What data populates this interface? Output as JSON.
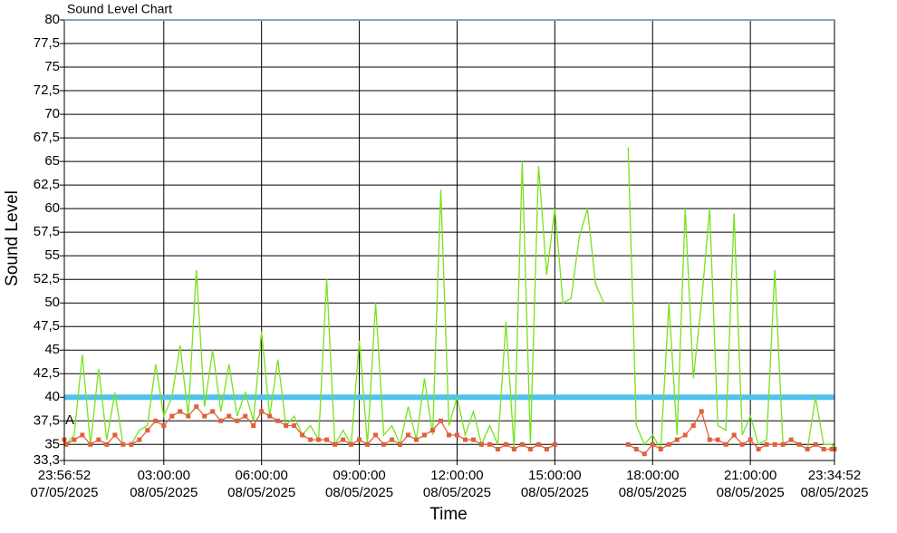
{
  "chart_data": {
    "type": "line",
    "title": "Sound Level Chart",
    "x_label": "Time",
    "y_label": "Sound Level",
    "annotation": "A",
    "threshold": 40,
    "threshold_color": "#4fc1ee",
    "grid": true,
    "xlim": [
      "2025-05-07T23:56:52",
      "2025-05-08T23:34:52"
    ],
    "xticks": [
      {
        "value": "2025-05-07T23:56:52",
        "label": "23:56:52\n07/05/2025"
      },
      {
        "value": "2025-05-08T03:00:00",
        "label": "03:00:00\n08/05/2025"
      },
      {
        "value": "2025-05-08T06:00:00",
        "label": "06:00:00\n08/05/2025"
      },
      {
        "value": "2025-05-08T09:00:00",
        "label": "09:00:00\n08/05/2025"
      },
      {
        "value": "2025-05-08T12:00:00",
        "label": "12:00:00\n08/05/2025"
      },
      {
        "value": "2025-05-08T15:00:00",
        "label": "15:00:00\n08/05/2025"
      },
      {
        "value": "2025-05-08T18:00:00",
        "label": "18:00:00\n08/05/2025"
      },
      {
        "value": "2025-05-08T21:00:00",
        "label": "21:00:00\n08/05/2025"
      },
      {
        "value": "2025-05-08T23:34:52",
        "label": "23:34:52\n08/05/2025"
      }
    ],
    "ylim": [
      33.3,
      80
    ],
    "yticks": [
      {
        "value": 33.3,
        "label": "33,3"
      },
      35,
      {
        "value": 37.5,
        "label": "37,5"
      },
      40,
      {
        "value": 42.5,
        "label": "42,5"
      },
      45,
      {
        "value": 47.5,
        "label": "47,5"
      },
      50,
      {
        "value": 52.5,
        "label": "52,5"
      },
      55,
      {
        "value": 57.5,
        "label": "57,5"
      },
      60,
      {
        "value": 62.5,
        "label": "62,5"
      },
      65,
      {
        "value": 67.5,
        "label": "67,5"
      },
      70,
      {
        "value": 72.5,
        "label": "72,5"
      },
      75,
      {
        "value": 77.5,
        "label": "77,5"
      },
      80
    ],
    "x": [
      "2025-05-07T23:56:52",
      "2025-05-08T00:00:00",
      "2025-05-08T00:15:00",
      "2025-05-08T00:30:00",
      "2025-05-08T00:45:00",
      "2025-05-08T01:00:00",
      "2025-05-08T01:15:00",
      "2025-05-08T01:30:00",
      "2025-05-08T01:45:00",
      "2025-05-08T02:00:00",
      "2025-05-08T02:15:00",
      "2025-05-08T02:30:00",
      "2025-05-08T02:45:00",
      "2025-05-08T03:00:00",
      "2025-05-08T03:15:00",
      "2025-05-08T03:30:00",
      "2025-05-08T03:45:00",
      "2025-05-08T04:00:00",
      "2025-05-08T04:15:00",
      "2025-05-08T04:30:00",
      "2025-05-08T04:45:00",
      "2025-05-08T05:00:00",
      "2025-05-08T05:15:00",
      "2025-05-08T05:30:00",
      "2025-05-08T05:45:00",
      "2025-05-08T06:00:00",
      "2025-05-08T06:15:00",
      "2025-05-08T06:30:00",
      "2025-05-08T06:45:00",
      "2025-05-08T07:00:00",
      "2025-05-08T07:15:00",
      "2025-05-08T07:30:00",
      "2025-05-08T07:45:00",
      "2025-05-08T08:00:00",
      "2025-05-08T08:15:00",
      "2025-05-08T08:30:00",
      "2025-05-08T08:45:00",
      "2025-05-08T09:00:00",
      "2025-05-08T09:15:00",
      "2025-05-08T09:30:00",
      "2025-05-08T09:45:00",
      "2025-05-08T10:00:00",
      "2025-05-08T10:15:00",
      "2025-05-08T10:30:00",
      "2025-05-08T10:45:00",
      "2025-05-08T11:00:00",
      "2025-05-08T11:15:00",
      "2025-05-08T11:30:00",
      "2025-05-08T11:45:00",
      "2025-05-08T12:00:00",
      "2025-05-08T12:15:00",
      "2025-05-08T12:30:00",
      "2025-05-08T12:45:00",
      "2025-05-08T13:00:00",
      "2025-05-08T13:15:00",
      "2025-05-08T13:30:00",
      "2025-05-08T13:45:00",
      "2025-05-08T14:00:00",
      "2025-05-08T14:15:00",
      "2025-05-08T14:30:00",
      "2025-05-08T14:45:00",
      "2025-05-08T15:00:00",
      "2025-05-08T15:15:00",
      "2025-05-08T15:30:00",
      "2025-05-08T15:45:00",
      "2025-05-08T16:00:00",
      "2025-05-08T16:15:00",
      "2025-05-08T16:30:00",
      "2025-05-08T16:45:00",
      "2025-05-08T17:00:00",
      "2025-05-08T17:15:00",
      "2025-05-08T17:30:00",
      "2025-05-08T17:45:00",
      "2025-05-08T18:00:00",
      "2025-05-08T18:15:00",
      "2025-05-08T18:30:00",
      "2025-05-08T18:45:00",
      "2025-05-08T19:00:00",
      "2025-05-08T19:15:00",
      "2025-05-08T19:30:00",
      "2025-05-08T19:45:00",
      "2025-05-08T20:00:00",
      "2025-05-08T20:15:00",
      "2025-05-08T20:30:00",
      "2025-05-08T20:45:00",
      "2025-05-08T21:00:00",
      "2025-05-08T21:15:00",
      "2025-05-08T21:30:00",
      "2025-05-08T21:45:00",
      "2025-05-08T22:00:00",
      "2025-05-08T22:15:00",
      "2025-05-08T22:30:00",
      "2025-05-08T22:45:00",
      "2025-05-08T23:00:00",
      "2025-05-08T23:15:00",
      "2025-05-08T23:30:00",
      "2025-05-08T23:34:52"
    ],
    "series": [
      {
        "color": "#77e21a",
        "markers": false,
        "values": [
          35.5,
          35,
          36,
          44.5,
          35,
          43,
          35.5,
          40.5,
          35,
          35,
          36.5,
          37,
          43.5,
          38,
          40,
          45.5,
          38,
          53.5,
          39,
          45,
          38.5,
          43.5,
          38,
          40.5,
          37.5,
          47,
          38,
          44,
          37,
          38,
          36,
          37,
          35.5,
          52.5,
          35,
          36.5,
          35,
          46,
          35,
          50,
          36,
          37,
          35,
          39,
          35.5,
          42,
          36,
          62,
          37,
          40,
          36,
          38.5,
          35,
          37,
          35,
          48,
          34.5,
          65,
          35,
          64.5,
          53,
          60,
          50,
          50.5,
          57,
          60,
          52,
          50,
          null,
          null,
          66.5,
          37,
          35,
          36,
          34.5,
          50,
          36,
          60,
          42,
          50,
          60,
          37,
          36.5,
          59.5,
          36,
          38,
          35,
          35.5,
          53.5,
          35,
          35.5,
          35,
          34.5,
          40,
          35,
          35,
          34.5
        ]
      },
      {
        "color": "#e0603a",
        "markers": true,
        "values": [
          35.5,
          35,
          35.5,
          36,
          35,
          35.5,
          35,
          36,
          35,
          35,
          35.5,
          36.5,
          37.5,
          37,
          38,
          38.5,
          38,
          39,
          38,
          38.5,
          37.5,
          38,
          37.5,
          38,
          37,
          38.5,
          38,
          37.5,
          37,
          37,
          36,
          35.5,
          35.5,
          35.5,
          35,
          35.5,
          35,
          35.5,
          35,
          36,
          35,
          35.5,
          35,
          36,
          35.5,
          36,
          36.5,
          37.5,
          36,
          36,
          35.5,
          35.5,
          35,
          35,
          34.5,
          35,
          34.5,
          35,
          34.5,
          35,
          34.5,
          35,
          null,
          null,
          null,
          null,
          null,
          null,
          null,
          null,
          35,
          34.5,
          34,
          35,
          34.5,
          35,
          35.5,
          36,
          37,
          38.5,
          35.5,
          35.5,
          35,
          36,
          35,
          35.5,
          34.5,
          35,
          35,
          35,
          35.5,
          35,
          34.5,
          35,
          34.5,
          34.5,
          34.5
        ]
      }
    ]
  }
}
